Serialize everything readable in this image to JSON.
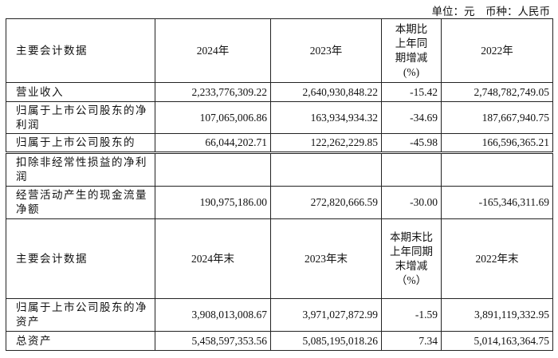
{
  "unit_note": "单位：元　币种：人民币",
  "table1": {
    "header": [
      "主要会计数据",
      "2024年",
      "2023年",
      "本期比上年同期增减(%)",
      "2022年"
    ],
    "rows": [
      [
        "营业收入",
        "2,233,776,309.22",
        "2,640,930,848.22",
        "-15.42",
        "2,748,782,749.05"
      ],
      [
        "归属于上市公司股东的净利润",
        "107,065,006.86",
        "163,934,934.32",
        "-34.69",
        "187,667,940.75"
      ],
      [
        "归属于上市公司股东的",
        "66,044,202.71",
        "122,262,229.85",
        "-45.98",
        "166,596,365.21"
      ]
    ]
  },
  "table2": {
    "rows_top": [
      [
        "扣除非经常性损益的净利润",
        "",
        "",
        "",
        ""
      ],
      [
        "经营活动产生的现金流量净额",
        "190,975,186.00",
        "272,820,666.59",
        "-30.00",
        "-165,346,311.69"
      ]
    ],
    "header": [
      "主要会计数据",
      "2024年末",
      "2023年末",
      "本期末比上年同期末增减（%）",
      "2022年末"
    ],
    "rows": [
      [
        "归属于上市公司股东的净资产",
        "3,908,013,008.67",
        "3,971,027,872.99",
        "-1.59",
        "3,891,119,332.95"
      ],
      [
        "总资产",
        "5,458,597,353.56",
        "5,085,195,018.26",
        "7.34",
        "5,014,163,364.75"
      ]
    ]
  }
}
